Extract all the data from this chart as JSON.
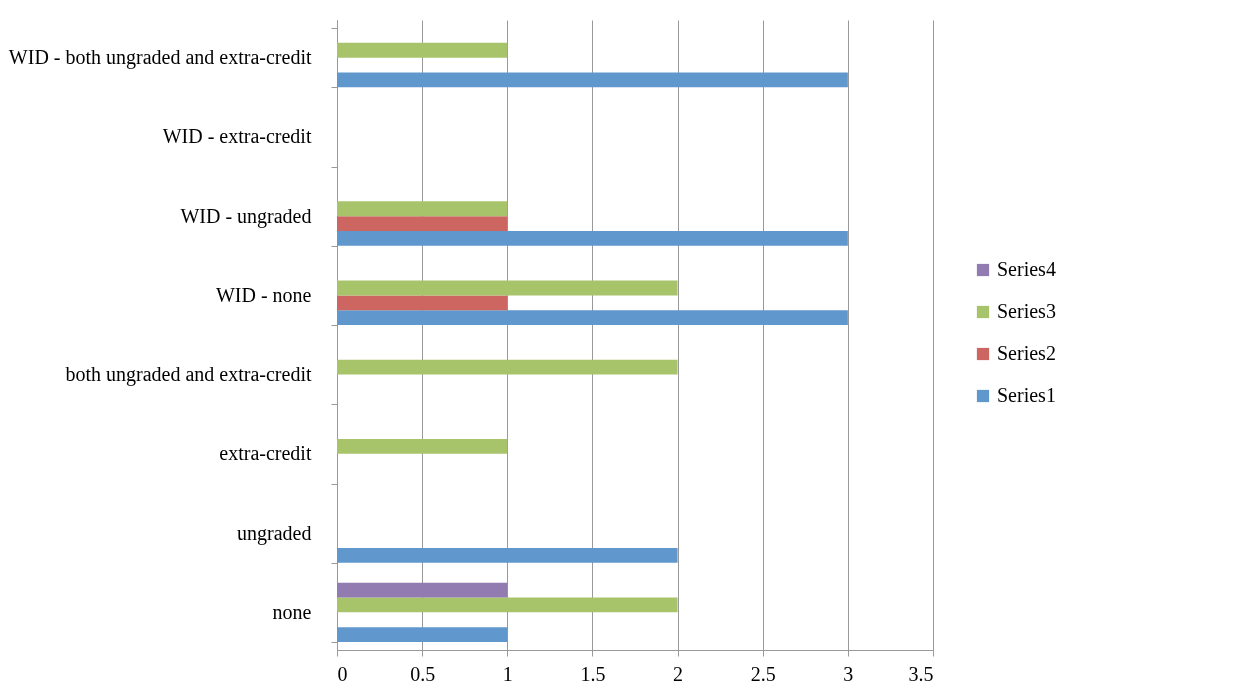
{
  "chart_data": {
    "type": "bar",
    "orientation": "horizontal",
    "categories": [
      "WID - both ungraded and extra-credit",
      "WID - extra-credit",
      "WID - ungraded",
      "WID - none",
      "both ungraded and extra-credit",
      "extra-credit",
      "ungraded",
      "none"
    ],
    "series": [
      {
        "name": "Series1",
        "color": "#6097cd",
        "values": [
          3,
          0,
          3,
          3,
          0,
          0,
          2,
          1
        ]
      },
      {
        "name": "Series2",
        "color": "#cd6561",
        "values": [
          0,
          0,
          1,
          1,
          0,
          0,
          0,
          0
        ]
      },
      {
        "name": "Series3",
        "color": "#a8c46b",
        "values": [
          1,
          0,
          1,
          2,
          2,
          1,
          0,
          2
        ]
      },
      {
        "name": "Series4",
        "color": "#927bb0",
        "values": [
          0,
          0,
          0,
          0,
          0,
          0,
          0,
          1
        ]
      }
    ],
    "xlim": [
      0,
      3.5
    ],
    "xticks": [
      0,
      0.5,
      1,
      1.5,
      2,
      2.5,
      3,
      3.5
    ],
    "grid": "x",
    "legend": "right"
  }
}
